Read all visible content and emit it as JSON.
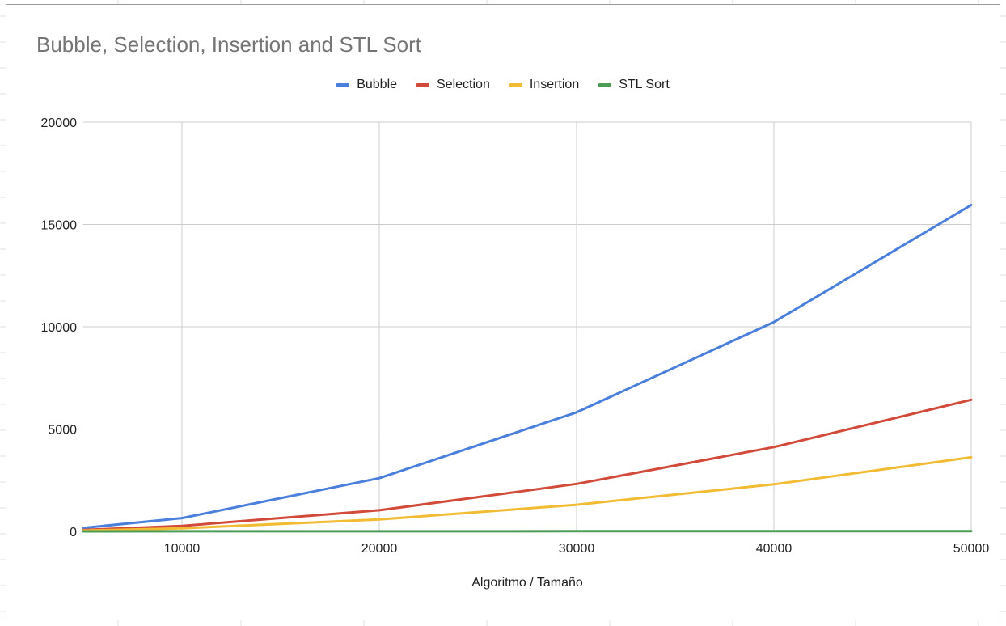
{
  "chart_data": {
    "type": "line",
    "title": "Bubble, Selection, Insertion and STL Sort",
    "xlabel": "Algoritmo / Tamaño",
    "ylabel": "",
    "x": [
      5000,
      10000,
      20000,
      30000,
      40000,
      50000
    ],
    "xlim": [
      5000,
      50000
    ],
    "ylim": [
      0,
      20000
    ],
    "x_ticks": [
      "10000",
      "20000",
      "30000",
      "40000",
      "50000"
    ],
    "y_ticks": [
      "0",
      "5000",
      "10000",
      "15000",
      "20000"
    ],
    "grid": true,
    "legend_position": "top-center",
    "series": [
      {
        "name": "Bubble",
        "color": "#4a7fdc",
        "values": [
          170,
          650,
          2600,
          5820,
          10230,
          15950
        ]
      },
      {
        "name": "Selection",
        "color": "#d24a3a",
        "values": [
          70,
          270,
          1030,
          2320,
          4120,
          6430
        ]
      },
      {
        "name": "Insertion",
        "color": "#f1bc34",
        "values": [
          40,
          150,
          580,
          1300,
          2300,
          3620
        ]
      },
      {
        "name": "STL Sort",
        "color": "#4e9d56",
        "values": [
          1,
          2,
          4,
          6,
          8,
          10
        ]
      }
    ]
  }
}
